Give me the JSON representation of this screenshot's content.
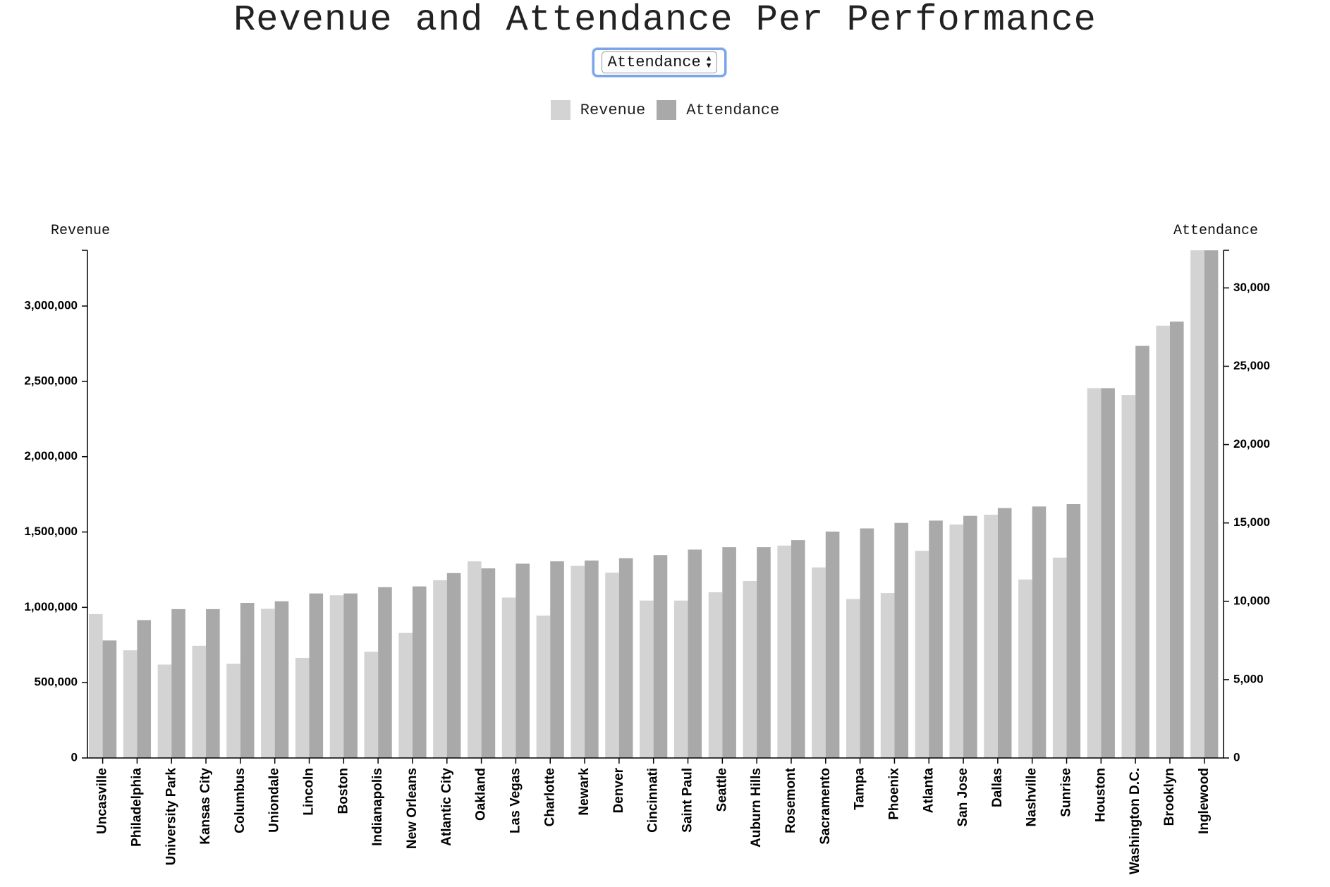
{
  "title": "Revenue and Attendance Per Performance",
  "sort_select": {
    "selected": "Attendance",
    "options": [
      "Attendance"
    ]
  },
  "legend": [
    {
      "label": "Revenue",
      "color": "#d3d3d3"
    },
    {
      "label": "Attendance",
      "color": "#a9a9a9"
    }
  ],
  "chart_data": {
    "type": "bar",
    "title": "Revenue and Attendance Per Performance",
    "xlabel": "",
    "ylabel": "Revenue",
    "y2label": "Attendance",
    "ylim": [
      0,
      3370000
    ],
    "y2lim": [
      0,
      32400
    ],
    "yticks": [
      0,
      500000,
      1000000,
      1500000,
      2000000,
      2500000,
      3000000
    ],
    "y2ticks": [
      0,
      5000,
      10000,
      15000,
      20000,
      25000,
      30000
    ],
    "grid": false,
    "legend_position": "top-center",
    "categories": [
      "Uncasville",
      "Philadelphia",
      "University Park",
      "Kansas City",
      "Columbus",
      "Uniondale",
      "Lincoln",
      "Boston",
      "Indianapolis",
      "New Orleans",
      "Atlantic City",
      "Oakland",
      "Las Vegas",
      "Charlotte",
      "Newark",
      "Denver",
      "Cincinnati",
      "Saint Paul",
      "Seattle",
      "Auburn Hills",
      "Rosemont",
      "Sacramento",
      "Tampa",
      "Phoenix",
      "Atlanta",
      "San Jose",
      "Dallas",
      "Nashville",
      "Sunrise",
      "Houston",
      "Washington D.C.",
      "Brooklyn",
      "Inglewood"
    ],
    "series": [
      {
        "name": "Revenue",
        "axis": "left",
        "color": "#d3d3d3",
        "values": [
          955000,
          715000,
          620000,
          745000,
          625000,
          990000,
          665000,
          1080000,
          705000,
          830000,
          1180000,
          1305000,
          1065000,
          945000,
          1275000,
          1230000,
          1045000,
          1045000,
          1100000,
          1175000,
          1410000,
          1265000,
          1055000,
          1095000,
          1375000,
          1550000,
          1615000,
          1185000,
          1330000,
          2455000,
          2410000,
          2870000,
          3370000
        ]
      },
      {
        "name": "Attendance",
        "axis": "right",
        "color": "#a9a9a9",
        "values": [
          7500,
          8800,
          9500,
          9500,
          9900,
          10000,
          10500,
          10500,
          10900,
          10950,
          11800,
          12100,
          12400,
          12550,
          12600,
          12750,
          12950,
          13300,
          13450,
          13450,
          13900,
          14450,
          14650,
          15000,
          15150,
          15450,
          15950,
          16050,
          16200,
          23600,
          26300,
          27850,
          32400
        ]
      }
    ]
  }
}
